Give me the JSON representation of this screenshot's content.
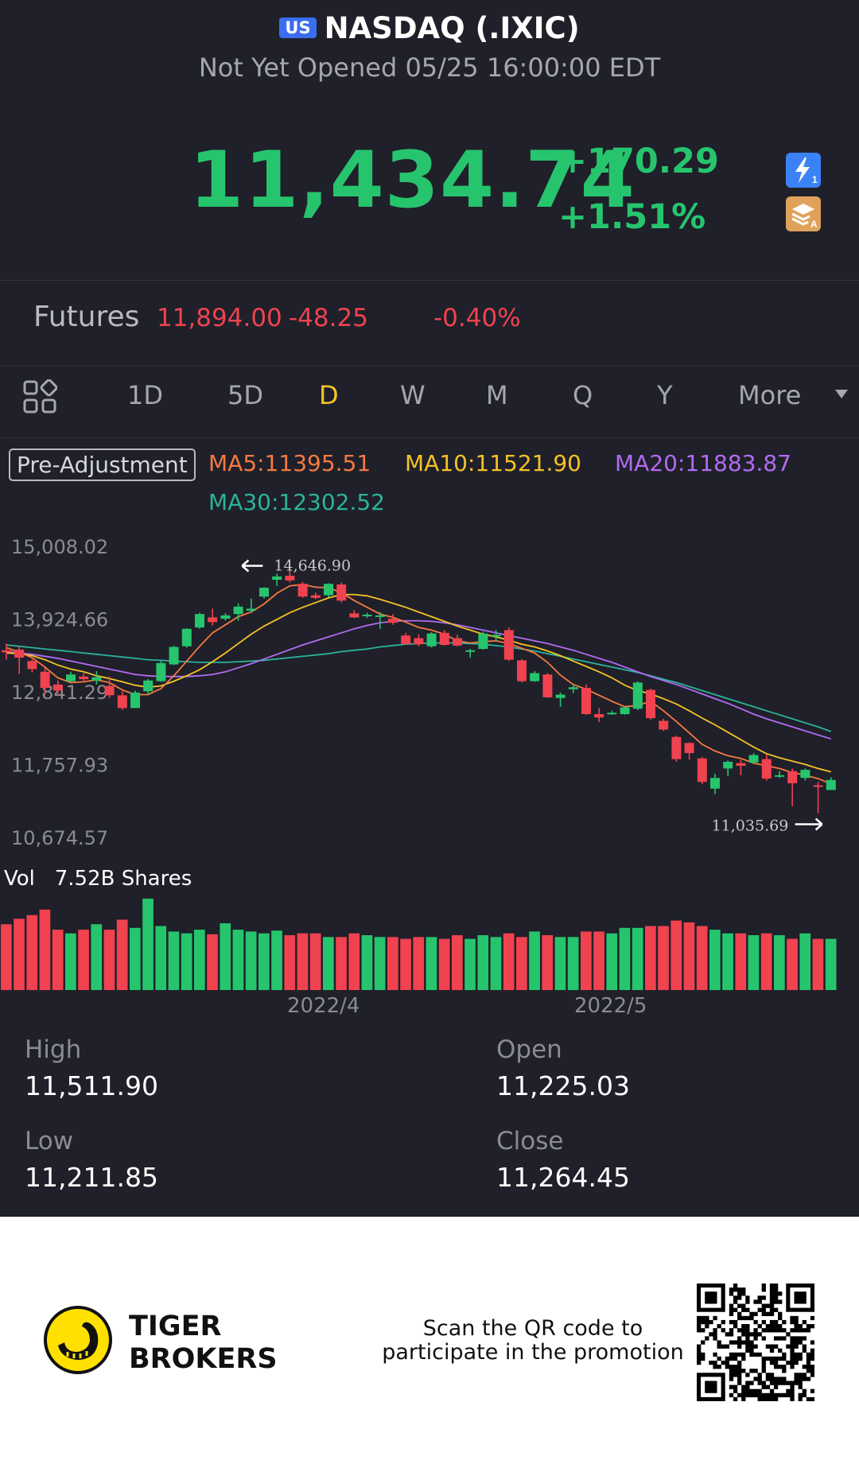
{
  "header": {
    "market_badge": "US",
    "title": "NASDAQ (.IXIC)",
    "status": "Not Yet Opened 05/25 16:00:00 EDT"
  },
  "quote": {
    "price": "11,434.74",
    "change": "+170.29",
    "change_pct": "+1.51%"
  },
  "futures": {
    "label": "Futures",
    "price": "11,894.00",
    "change": "-48.25",
    "change_pct": "-0.40%"
  },
  "tabs": [
    "1D",
    "5D",
    "D",
    "W",
    "M",
    "Q",
    "Y",
    "More"
  ],
  "active_tab": "D",
  "indicators": {
    "adjust_label": "Pre-Adjustment",
    "ma5": "MA5:11395.51",
    "ma10": "MA10:11521.90",
    "ma20": "MA20:11883.87",
    "ma30": "MA30:12302.52"
  },
  "volume": {
    "label": "Vol",
    "value": "7.52B Shares"
  },
  "stats": {
    "high_label": "High",
    "high": "11,511.90",
    "open_label": "Open",
    "open": "11,225.03",
    "low_label": "Low",
    "low": "11,211.85",
    "close_label": "Close",
    "close": "11,264.45"
  },
  "footer": {
    "brand_line1": "TIGER",
    "brand_line2": "BROKERS",
    "promo_line1": "Scan the QR code to",
    "promo_line2": "participate in the promotion"
  },
  "colors": {
    "up": "#27c46e",
    "down": "#f0424f",
    "ma5": "#f57a42",
    "ma10": "#f5c227",
    "ma20": "#b26bf2",
    "ma30": "#2bb39b"
  },
  "chart_data": {
    "type": "candlestick",
    "y_ticks": [
      "15,008.02",
      "13,924.66",
      "12,841.29",
      "11,757.93",
      "10,674.57"
    ],
    "ylim": [
      10674.57,
      15008.02
    ],
    "x_ticks": [
      "2022/4",
      "2022/5"
    ],
    "annotations": {
      "high": "14,646.90",
      "low": "11,035.69"
    },
    "candles": [
      {
        "o": 13460,
        "h": 13560,
        "l": 13320,
        "c": 13430
      },
      {
        "o": 13470,
        "h": 13520,
        "l": 13110,
        "c": 13350
      },
      {
        "o": 13300,
        "h": 13330,
        "l": 13130,
        "c": 13180
      },
      {
        "o": 13140,
        "h": 13200,
        "l": 12800,
        "c": 12900
      },
      {
        "o": 12950,
        "h": 13010,
        "l": 12780,
        "c": 12860
      },
      {
        "o": 13000,
        "h": 13140,
        "l": 12990,
        "c": 13100
      },
      {
        "o": 13070,
        "h": 13120,
        "l": 12980,
        "c": 13030
      },
      {
        "o": 13010,
        "h": 13150,
        "l": 12950,
        "c": 13060
      },
      {
        "o": 12930,
        "h": 13070,
        "l": 12750,
        "c": 12790
      },
      {
        "o": 12790,
        "h": 12850,
        "l": 12570,
        "c": 12600
      },
      {
        "o": 12600,
        "h": 12860,
        "l": 12600,
        "c": 12830
      },
      {
        "o": 12850,
        "h": 13030,
        "l": 12800,
        "c": 13010
      },
      {
        "o": 13000,
        "h": 13300,
        "l": 12990,
        "c": 13270
      },
      {
        "o": 13250,
        "h": 13530,
        "l": 13240,
        "c": 13510
      },
      {
        "o": 13520,
        "h": 13790,
        "l": 13500,
        "c": 13780
      },
      {
        "o": 13800,
        "h": 14020,
        "l": 13780,
        "c": 14000
      },
      {
        "o": 13950,
        "h": 14080,
        "l": 13830,
        "c": 13880
      },
      {
        "o": 13930,
        "h": 14010,
        "l": 13900,
        "c": 13980
      },
      {
        "o": 14000,
        "h": 14160,
        "l": 13900,
        "c": 14110
      },
      {
        "o": 14050,
        "h": 14230,
        "l": 14020,
        "c": 14080
      },
      {
        "o": 14260,
        "h": 14400,
        "l": 14230,
        "c": 14390
      },
      {
        "o": 14510,
        "h": 14600,
        "l": 14420,
        "c": 14560
      },
      {
        "o": 14570,
        "h": 14646.9,
        "l": 14470,
        "c": 14500
      },
      {
        "o": 14450,
        "h": 14480,
        "l": 14240,
        "c": 14260
      },
      {
        "o": 14280,
        "h": 14320,
        "l": 14220,
        "c": 14240
      },
      {
        "o": 14280,
        "h": 14460,
        "l": 14250,
        "c": 14450
      },
      {
        "o": 14440,
        "h": 14470,
        "l": 14170,
        "c": 14200
      },
      {
        "o": 14010,
        "h": 14060,
        "l": 13940,
        "c": 13950
      },
      {
        "o": 13980,
        "h": 14020,
        "l": 13940,
        "c": 13990
      },
      {
        "o": 13960,
        "h": 14030,
        "l": 13780,
        "c": 13980
      },
      {
        "o": 13930,
        "h": 14000,
        "l": 13840,
        "c": 13870
      },
      {
        "o": 13680,
        "h": 13720,
        "l": 13540,
        "c": 13550
      },
      {
        "o": 13640,
        "h": 13700,
        "l": 13520,
        "c": 13550
      },
      {
        "o": 13520,
        "h": 13730,
        "l": 13500,
        "c": 13710
      },
      {
        "o": 13720,
        "h": 13760,
        "l": 13530,
        "c": 13540
      },
      {
        "o": 13640,
        "h": 13690,
        "l": 13520,
        "c": 13530
      },
      {
        "o": 13460,
        "h": 13480,
        "l": 13350,
        "c": 13460
      },
      {
        "o": 13480,
        "h": 13740,
        "l": 13470,
        "c": 13710
      },
      {
        "o": 13680,
        "h": 13760,
        "l": 13600,
        "c": 13690
      },
      {
        "o": 13760,
        "h": 13800,
        "l": 13300,
        "c": 13320
      },
      {
        "o": 13310,
        "h": 13330,
        "l": 12980,
        "c": 13000
      },
      {
        "o": 13000,
        "h": 13150,
        "l": 12990,
        "c": 13120
      },
      {
        "o": 13100,
        "h": 13120,
        "l": 12750,
        "c": 12760
      },
      {
        "o": 12750,
        "h": 12830,
        "l": 12620,
        "c": 12800
      },
      {
        "o": 12880,
        "h": 12950,
        "l": 12820,
        "c": 12910
      },
      {
        "o": 12900,
        "h": 12950,
        "l": 12500,
        "c": 12510
      },
      {
        "o": 12510,
        "h": 12600,
        "l": 12390,
        "c": 12460
      },
      {
        "o": 12520,
        "h": 12560,
        "l": 12500,
        "c": 12530
      },
      {
        "o": 12510,
        "h": 12620,
        "l": 12500,
        "c": 12610
      },
      {
        "o": 12590,
        "h": 13000,
        "l": 12570,
        "c": 12980
      },
      {
        "o": 12870,
        "h": 12890,
        "l": 12430,
        "c": 12450
      },
      {
        "o": 12410,
        "h": 12440,
        "l": 12260,
        "c": 12280
      },
      {
        "o": 12170,
        "h": 12190,
        "l": 11800,
        "c": 11840
      },
      {
        "o": 12080,
        "h": 12090,
        "l": 11830,
        "c": 11930
      },
      {
        "o": 11850,
        "h": 11870,
        "l": 11470,
        "c": 11500
      },
      {
        "o": 11400,
        "h": 11620,
        "l": 11320,
        "c": 11560
      },
      {
        "o": 11700,
        "h": 11820,
        "l": 11590,
        "c": 11800
      },
      {
        "o": 11780,
        "h": 11830,
        "l": 11600,
        "c": 11740
      },
      {
        "o": 11790,
        "h": 11930,
        "l": 11770,
        "c": 11900
      },
      {
        "o": 11840,
        "h": 11910,
        "l": 11520,
        "c": 11550
      },
      {
        "o": 11590,
        "h": 11660,
        "l": 11560,
        "c": 11600
      },
      {
        "o": 11660,
        "h": 11700,
        "l": 11140,
        "c": 11480
      },
      {
        "o": 11560,
        "h": 11700,
        "l": 11520,
        "c": 11680
      },
      {
        "o": 11450,
        "h": 11500,
        "l": 11035.69,
        "c": 11430
      },
      {
        "o": 11380,
        "h": 11570,
        "l": 11380,
        "c": 11530
      }
    ],
    "ma5": [
      13500,
      13430,
      13350,
      13210,
      13050,
      12980,
      12990,
      13020,
      12980,
      12870,
      12800,
      12800,
      12890,
      13080,
      13300,
      13520,
      13720,
      13840,
      13960,
      14030,
      14150,
      14310,
      14420,
      14440,
      14400,
      14390,
      14320,
      14200,
      14100,
      14000,
      13950,
      13880,
      13800,
      13760,
      13700,
      13600,
      13570,
      13590,
      13600,
      13560,
      13490,
      13420,
      13280,
      13090,
      12950,
      12880,
      12790,
      12700,
      12620,
      12640,
      12700,
      12560,
      12400,
      12230,
      12060,
      11960,
      11890,
      11850,
      11780,
      11740,
      11700,
      11640,
      11600,
      11550,
      11470
    ],
    "ma10": [
      13420,
      13410,
      13380,
      13320,
      13240,
      13180,
      13140,
      13080,
      13040,
      12990,
      12940,
      12910,
      12930,
      13000,
      13080,
      13170,
      13290,
      13420,
      13560,
      13700,
      13820,
      13920,
      14020,
      14100,
      14170,
      14240,
      14290,
      14290,
      14270,
      14220,
      14160,
      14100,
      14030,
      13960,
      13890,
      13820,
      13760,
      13700,
      13660,
      13610,
      13550,
      13510,
      13450,
      13380,
      13300,
      13220,
      13140,
      13050,
      12940,
      12860,
      12810,
      12740,
      12660,
      12560,
      12450,
      12350,
      12240,
      12130,
      12020,
      11920,
      11860,
      11810,
      11760,
      11700,
      11650
    ],
    "ma20": [
      13440,
      13420,
      13400,
      13370,
      13340,
      13300,
      13260,
      13220,
      13180,
      13140,
      13100,
      13080,
      13070,
      13070,
      13070,
      13080,
      13100,
      13140,
      13200,
      13260,
      13330,
      13400,
      13470,
      13540,
      13600,
      13660,
      13720,
      13780,
      13830,
      13870,
      13890,
      13900,
      13900,
      13890,
      13870,
      13840,
      13800,
      13760,
      13720,
      13680,
      13640,
      13600,
      13560,
      13510,
      13460,
      13400,
      13340,
      13280,
      13210,
      13140,
      13070,
      13010,
      12950,
      12880,
      12810,
      12740,
      12670,
      12590,
      12510,
      12440,
      12380,
      12320,
      12260,
      12200,
      12140
    ],
    "ma30": [
      13540,
      13520,
      13500,
      13480,
      13460,
      13440,
      13420,
      13400,
      13380,
      13360,
      13340,
      13320,
      13310,
      13300,
      13290,
      13280,
      13280,
      13280,
      13290,
      13300,
      13310,
      13330,
      13350,
      13370,
      13390,
      13410,
      13440,
      13460,
      13480,
      13510,
      13530,
      13550,
      13560,
      13570,
      13570,
      13570,
      13560,
      13550,
      13530,
      13510,
      13480,
      13450,
      13410,
      13370,
      13330,
      13290,
      13250,
      13210,
      13170,
      13130,
      13080,
      13030,
      12980,
      12920,
      12860,
      12800,
      12740,
      12680,
      12620,
      12560,
      12500,
      12440,
      12380,
      12320,
      12250
    ],
    "volume": [
      0.72,
      0.78,
      0.82,
      0.88,
      0.66,
      0.62,
      0.66,
      0.72,
      0.66,
      0.77,
      0.68,
      1.0,
      0.7,
      0.64,
      0.62,
      0.66,
      0.61,
      0.73,
      0.66,
      0.64,
      0.62,
      0.65,
      0.6,
      0.62,
      0.62,
      0.58,
      0.58,
      0.62,
      0.6,
      0.58,
      0.58,
      0.56,
      0.58,
      0.58,
      0.56,
      0.6,
      0.56,
      0.6,
      0.58,
      0.62,
      0.58,
      0.64,
      0.6,
      0.58,
      0.58,
      0.64,
      0.64,
      0.62,
      0.68,
      0.68,
      0.7,
      0.7,
      0.76,
      0.74,
      0.7,
      0.66,
      0.62,
      0.62,
      0.6,
      0.62,
      0.6,
      0.56,
      0.62,
      0.56,
      0.56
    ]
  }
}
